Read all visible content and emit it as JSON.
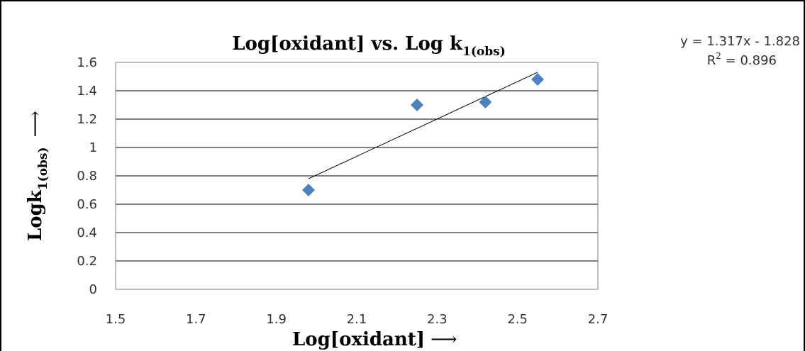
{
  "chart_data": {
    "type": "scatter",
    "title": {
      "main": "Log[oxidant] vs. Log k",
      "sub": "1(obs)"
    },
    "xlabel": "Log[oxidant]",
    "ylabel": {
      "main": "Logk",
      "sub": "1(obs)"
    },
    "xlim": [
      1.5,
      2.7
    ],
    "ylim": [
      0,
      1.6
    ],
    "x_ticks": [
      "1.5",
      "1.7",
      "1.9",
      "2.1",
      "2.3",
      "2.5",
      "2.7"
    ],
    "y_ticks": [
      "0",
      "0.2",
      "0.4",
      "0.6",
      "0.8",
      "1",
      "1.2",
      "1.4",
      "1.6"
    ],
    "grid": {
      "horizontal": true,
      "vertical": false
    },
    "series": [
      {
        "marker": "diamond",
        "color": "#4f81bd",
        "points": [
          {
            "x": 1.98,
            "y": 0.7
          },
          {
            "x": 2.25,
            "y": 1.3
          },
          {
            "x": 2.42,
            "y": 1.32
          },
          {
            "x": 2.55,
            "y": 1.48
          }
        ]
      }
    ],
    "trendline": {
      "type": "linear",
      "slope": 1.317,
      "intercept": -1.828,
      "x_range": [
        1.98,
        2.55
      ],
      "color": "#000000"
    },
    "equation": {
      "line1": "y = 1.317x - 1.828",
      "r2_prefix": "R",
      "r2_sup": "2",
      "r2_suffix": " = 0.896"
    },
    "arrow_glyph": "⟶"
  }
}
